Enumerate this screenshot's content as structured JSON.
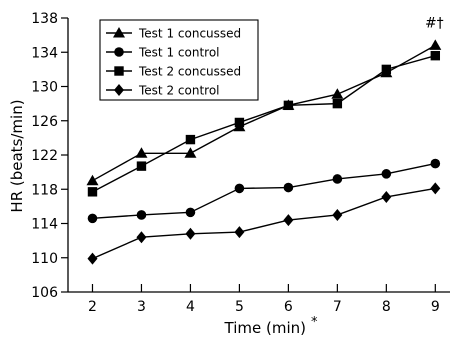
{
  "chart_data": {
    "type": "line",
    "xlabel": "Time (min)",
    "xlabel_mark": "*",
    "ylabel": "HR (beats/min)",
    "ylim": [
      106,
      138
    ],
    "yticks": [
      106,
      110,
      114,
      118,
      122,
      126,
      130,
      134,
      138
    ],
    "xlim": [
      1.5,
      9.3
    ],
    "xticks": [
      2,
      3,
      4,
      5,
      6,
      7,
      8,
      9
    ],
    "grid": false,
    "legend_position": "top-left",
    "x": [
      2,
      3,
      4,
      5,
      6,
      7,
      8,
      9
    ],
    "series": [
      {
        "name": "Test 1 concussed",
        "marker": "triangle",
        "values": [
          119.0,
          122.2,
          122.2,
          125.3,
          127.8,
          129.1,
          131.6,
          134.8
        ]
      },
      {
        "name": "Test 1 control",
        "marker": "circle",
        "values": [
          114.6,
          115.0,
          115.3,
          118.1,
          118.2,
          119.2,
          119.8,
          121.0
        ]
      },
      {
        "name": "Test 2 concussed",
        "marker": "square",
        "values": [
          117.7,
          120.7,
          123.8,
          125.8,
          127.8,
          128.0,
          132.0,
          133.6
        ]
      },
      {
        "name": "Test 2 control",
        "marker": "diamond",
        "values": [
          109.9,
          112.4,
          112.8,
          113.0,
          114.4,
          115.0,
          117.1,
          118.1
        ]
      }
    ],
    "annotations": [
      {
        "text": "#†",
        "x": 9,
        "anchor_series": 0
      }
    ]
  }
}
